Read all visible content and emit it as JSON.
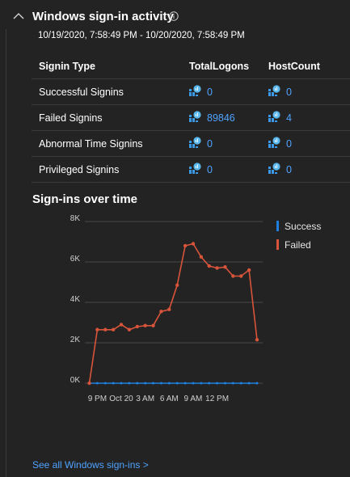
{
  "section": {
    "title": "Windows sign-in activity",
    "date_range": "10/19/2020, 7:58:49 PM - 10/20/2020, 7:58:49 PM"
  },
  "table": {
    "headers": [
      "Signin Type",
      "TotalLogons",
      "HostCount"
    ],
    "rows": [
      {
        "type": "Successful Signins",
        "total": "0",
        "hosts": "0"
      },
      {
        "type": "Failed Signins",
        "total": "89846",
        "hosts": "4"
      },
      {
        "type": "Abnormal Time Signins",
        "total": "0",
        "hosts": "0"
      },
      {
        "type": "Privileged Signins",
        "total": "0",
        "hosts": "0"
      }
    ]
  },
  "chart": {
    "title": "Sign-ins over time"
  },
  "footer": {
    "link": "See all Windows sign-ins >"
  },
  "colors": {
    "success": "#1f7fe0",
    "failed": "#d8543a",
    "link": "#4fa3ff"
  },
  "chart_data": {
    "type": "line",
    "title": "Sign-ins over time",
    "ylim": [
      0,
      8000
    ],
    "y_ticks": [
      "0K",
      "2K",
      "4K",
      "6K",
      "8K"
    ],
    "x_ticks": [
      {
        "label": "9 PM",
        "index": 1
      },
      {
        "label": "Oct 20",
        "index": 4
      },
      {
        "label": "3 AM",
        "index": 7
      },
      {
        "label": "6 AM",
        "index": 10
      },
      {
        "label": "9 AM",
        "index": 13
      },
      {
        "label": "12 PM",
        "index": 16
      }
    ],
    "x_count": 22,
    "series": [
      {
        "name": "Success",
        "color": "#1f7fe0",
        "values": [
          0,
          0,
          0,
          0,
          0,
          0,
          0,
          0,
          0,
          0,
          0,
          0,
          0,
          0,
          0,
          0,
          0,
          0,
          0,
          0,
          0,
          0
        ]
      },
      {
        "name": "Failed",
        "color": "#d8543a",
        "values": [
          0,
          2650,
          2650,
          2650,
          2900,
          2650,
          2800,
          2850,
          2850,
          3550,
          3650,
          4850,
          6800,
          6900,
          6250,
          5800,
          5700,
          5750,
          5300,
          5300,
          5600,
          2150
        ]
      }
    ],
    "legend_position": "top-right",
    "grid": true
  }
}
